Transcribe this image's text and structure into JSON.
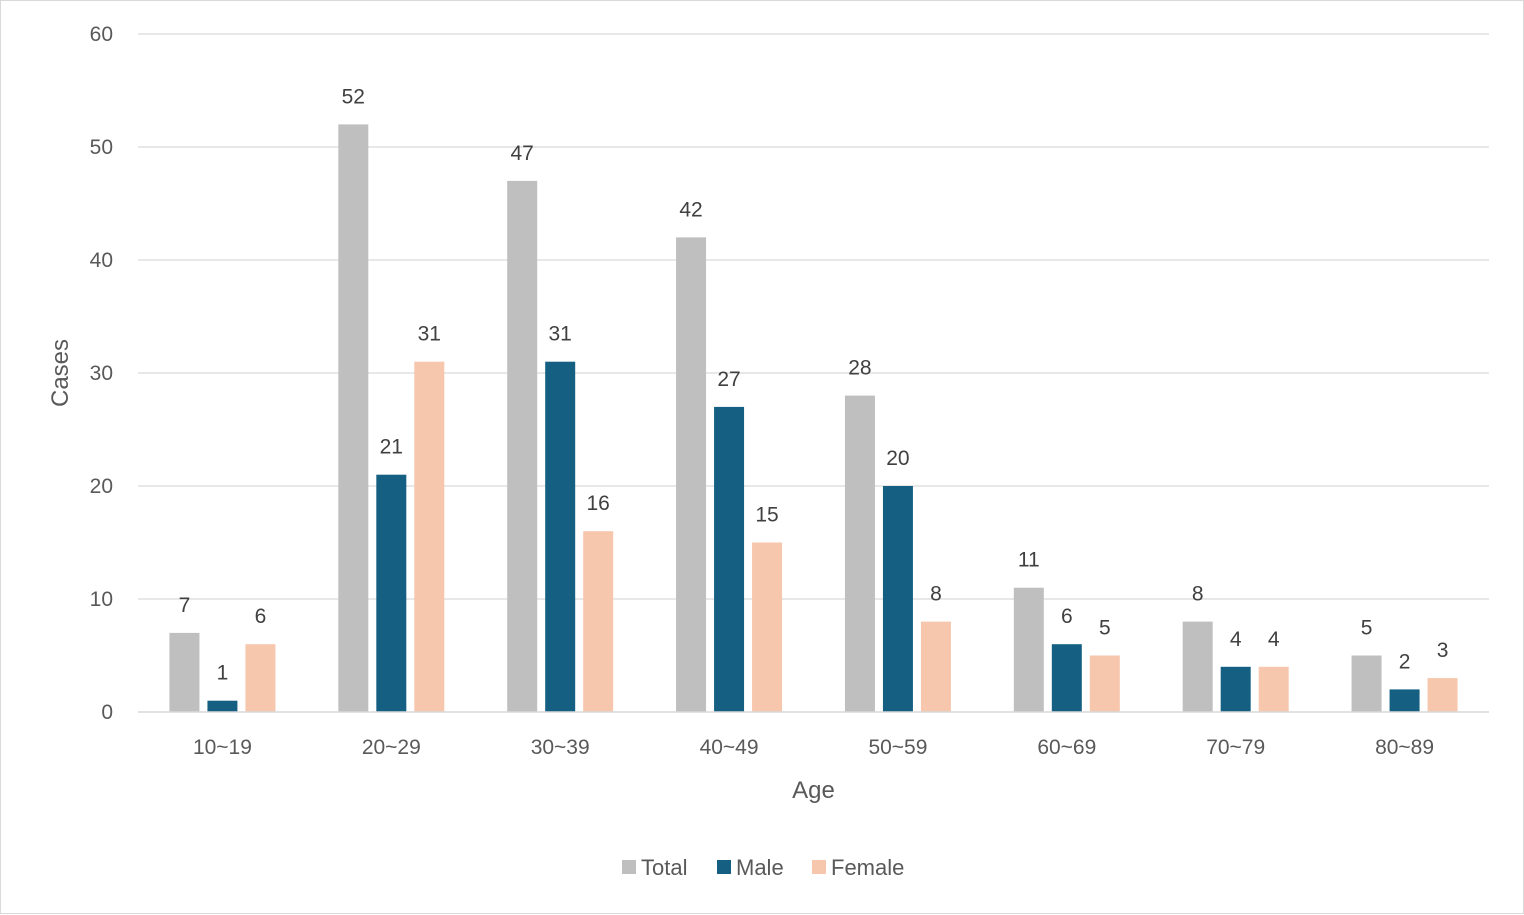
{
  "chart_data": {
    "type": "bar",
    "xlabel": "Age",
    "ylabel": "Cases",
    "ylim": [
      0,
      60
    ],
    "yticks": [
      0,
      10,
      20,
      30,
      40,
      50,
      60
    ],
    "grid": true,
    "legend_position": "bottom",
    "categories": [
      "10~19",
      "20~29",
      "30~39",
      "40~49",
      "50~59",
      "60~69",
      "70~79",
      "80~89"
    ],
    "series": [
      {
        "name": "Total",
        "color": "#bfbfbf",
        "values": [
          7,
          52,
          47,
          42,
          28,
          11,
          8,
          5
        ]
      },
      {
        "name": "Male",
        "color": "#156082",
        "values": [
          1,
          21,
          31,
          27,
          20,
          6,
          4,
          2
        ]
      },
      {
        "name": "Female",
        "color": "#f6c6ad",
        "values": [
          6,
          31,
          16,
          15,
          8,
          5,
          4,
          3
        ]
      }
    ]
  }
}
